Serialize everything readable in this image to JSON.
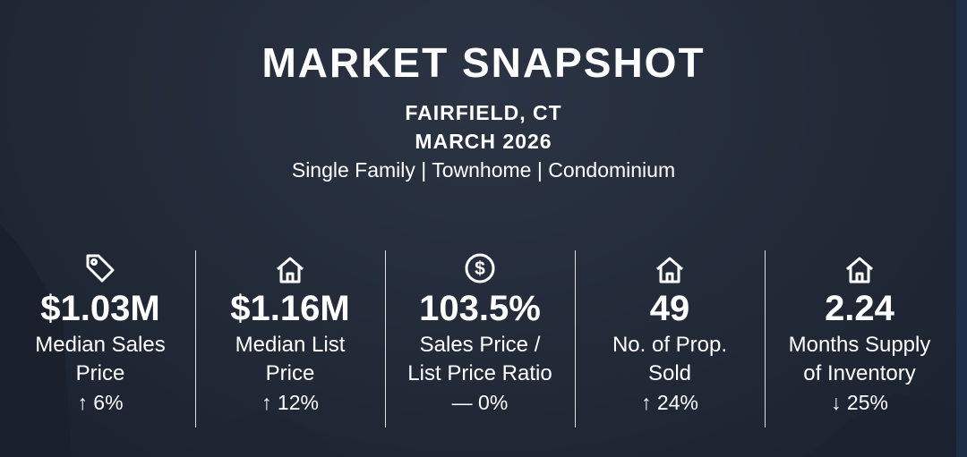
{
  "header": {
    "title": "MARKET SNAPSHOT",
    "location": "FAIRFIELD, CT",
    "date": "MARCH 2026",
    "property_types": "Single Family | Townhome | Condominium"
  },
  "stats": [
    {
      "icon": "price-tag-icon",
      "value": "$1.03M",
      "label_line1": "Median Sales",
      "label_line2": "Price",
      "change": "↑ 6%"
    },
    {
      "icon": "house-icon",
      "value": "$1.16M",
      "label_line1": "Median List",
      "label_line2": "Price",
      "change": "↑ 12%"
    },
    {
      "icon": "dollar-circle-icon",
      "value": "103.5%",
      "label_line1": "Sales Price /",
      "label_line2": "List Price Ratio",
      "change": "— 0%"
    },
    {
      "icon": "house-icon",
      "value": "49",
      "label_line1": "No. of Prop.",
      "label_line2": "Sold",
      "change": "↑ 24%"
    },
    {
      "icon": "house-icon",
      "value": "2.24",
      "label_line1": "Months Supply",
      "label_line2": "of Inventory",
      "change": "↓ 25%"
    }
  ]
}
